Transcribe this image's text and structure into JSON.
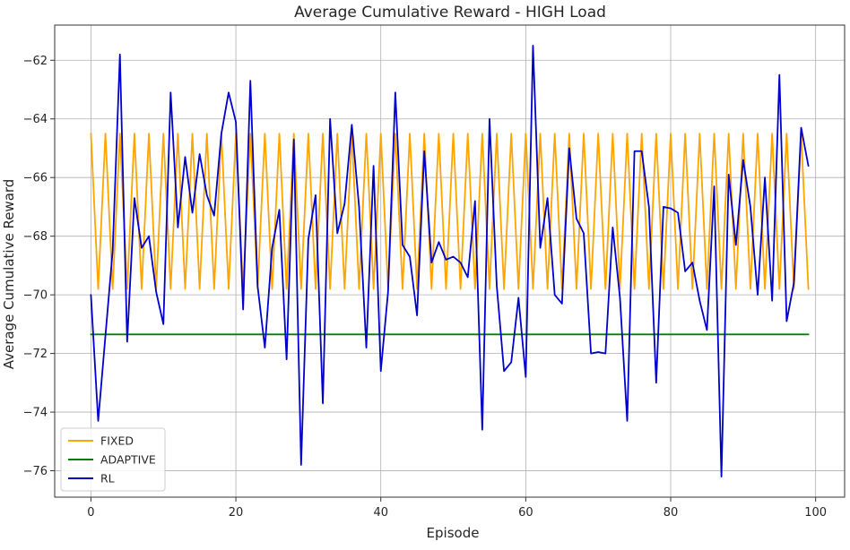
{
  "chart_data": {
    "type": "line",
    "title": "Average Cumulative Reward - HIGH Load",
    "xlabel": "Episode",
    "ylabel": "Average Cumulative Reward",
    "xlim": [
      -5,
      104
    ],
    "ylim": [
      -76.9,
      -60.8
    ],
    "xticks": [
      0,
      20,
      40,
      60,
      80,
      100
    ],
    "yticks": [
      -76,
      -74,
      -72,
      -70,
      -68,
      -66,
      -64,
      -62
    ],
    "grid": true,
    "legend_position": "lower-left",
    "series": [
      {
        "name": "FIXED",
        "color": "#ffa500",
        "x_start": 0,
        "values": [
          -64.5,
          -69.8,
          -64.5,
          -69.8,
          -64.5,
          -69.8,
          -64.5,
          -69.8,
          -64.5,
          -69.8,
          -64.5,
          -69.8,
          -64.5,
          -69.8,
          -64.5,
          -69.8,
          -64.5,
          -69.8,
          -64.5,
          -69.8,
          -64.5,
          -69.8,
          -64.5,
          -69.8,
          -64.5,
          -69.8,
          -64.5,
          -69.8,
          -64.5,
          -69.8,
          -64.5,
          -69.8,
          -64.5,
          -69.8,
          -64.5,
          -69.8,
          -64.5,
          -69.8,
          -64.5,
          -69.8,
          -64.5,
          -69.8,
          -64.5,
          -69.8,
          -64.5,
          -69.8,
          -64.5,
          -69.8,
          -64.5,
          -69.8,
          -64.5,
          -69.8,
          -64.5,
          -69.8,
          -64.5,
          -69.8,
          -64.5,
          -69.8,
          -64.5,
          -69.8,
          -64.5,
          -69.8,
          -64.5,
          -69.8,
          -64.5,
          -69.8,
          -64.5,
          -69.8,
          -64.5,
          -69.8,
          -64.5,
          -69.8,
          -64.5,
          -69.8,
          -64.5,
          -69.8,
          -64.5,
          -69.8,
          -64.5,
          -69.8,
          -64.5,
          -69.8,
          -64.5,
          -69.8,
          -64.5,
          -69.8,
          -64.5,
          -69.8,
          -64.5,
          -69.8,
          -64.5,
          -69.8,
          -64.5,
          -69.8,
          -64.5,
          -69.8,
          -64.5,
          -69.8,
          -64.5,
          -69.8
        ]
      },
      {
        "name": "ADAPTIVE",
        "color": "#008000",
        "x_start": 0,
        "values": [
          -71.35,
          -71.35,
          -71.35,
          -71.35,
          -71.35,
          -71.35,
          -71.35,
          -71.35,
          -71.35,
          -71.35,
          -71.35,
          -71.35,
          -71.35,
          -71.35,
          -71.35,
          -71.35,
          -71.35,
          -71.35,
          -71.35,
          -71.35,
          -71.35,
          -71.35,
          -71.35,
          -71.35,
          -71.35,
          -71.35,
          -71.35,
          -71.35,
          -71.35,
          -71.35,
          -71.35,
          -71.35,
          -71.35,
          -71.35,
          -71.35,
          -71.35,
          -71.35,
          -71.35,
          -71.35,
          -71.35,
          -71.35,
          -71.35,
          -71.35,
          -71.35,
          -71.35,
          -71.35,
          -71.35,
          -71.35,
          -71.35,
          -71.35,
          -71.35,
          -71.35,
          -71.35,
          -71.35,
          -71.35,
          -71.35,
          -71.35,
          -71.35,
          -71.35,
          -71.35,
          -71.35,
          -71.35,
          -71.35,
          -71.35,
          -71.35,
          -71.35,
          -71.35,
          -71.35,
          -71.35,
          -71.35,
          -71.35,
          -71.35,
          -71.35,
          -71.35,
          -71.35,
          -71.35,
          -71.35,
          -71.35,
          -71.35,
          -71.35,
          -71.35,
          -71.35,
          -71.35,
          -71.35,
          -71.35,
          -71.35,
          -71.35,
          -71.35,
          -71.35,
          -71.35,
          -71.35,
          -71.35,
          -71.35,
          -71.35,
          -71.35,
          -71.35,
          -71.35,
          -71.35,
          -71.35,
          -71.35
        ]
      },
      {
        "name": "RL",
        "color": "#0000cc",
        "x_start": 0,
        "values": [
          -70.0,
          -74.3,
          -71.4,
          -68.5,
          -61.8,
          -71.6,
          -66.7,
          -68.4,
          -68.0,
          -69.9,
          -71.0,
          -63.1,
          -67.7,
          -65.3,
          -67.2,
          -65.2,
          -66.6,
          -67.3,
          -64.5,
          -63.1,
          -64.1,
          -70.5,
          -62.7,
          -69.7,
          -71.8,
          -68.4,
          -67.1,
          -72.2,
          -64.7,
          -75.8,
          -68.1,
          -66.6,
          -73.7,
          -64.0,
          -67.9,
          -66.9,
          -64.2,
          -67.0,
          -71.8,
          -65.6,
          -72.6,
          -69.9,
          -63.1,
          -68.3,
          -68.7,
          -70.7,
          -65.1,
          -68.9,
          -68.2,
          -68.8,
          -68.7,
          -68.9,
          -69.4,
          -66.8,
          -74.6,
          -64.0,
          -69.7,
          -72.6,
          -72.3,
          -70.1,
          -72.8,
          -61.5,
          -68.4,
          -66.7,
          -70.0,
          -70.3,
          -65.0,
          -67.4,
          -67.9,
          -72.0,
          -71.95,
          -72.0,
          -67.7,
          -70.1,
          -74.3,
          -65.1,
          -65.1,
          -67.0,
          -73.0,
          -67.0,
          -67.05,
          -67.2,
          -69.2,
          -68.9,
          -70.2,
          -71.2,
          -66.3,
          -76.2,
          -65.9,
          -68.3,
          -65.4,
          -67.0,
          -70.0,
          -66.0,
          -70.2,
          -62.5,
          -70.9,
          -69.6,
          -64.3,
          -65.6
        ]
      }
    ]
  }
}
